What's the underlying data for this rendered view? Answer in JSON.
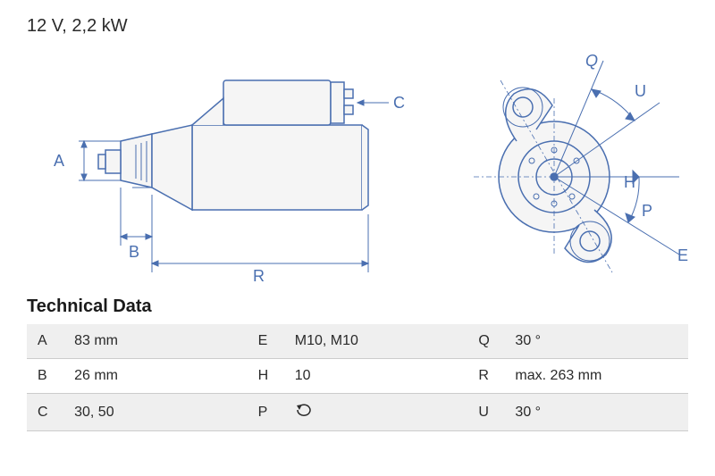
{
  "header": {
    "text": "12 V, 2,2 kW"
  },
  "diagram": {
    "labels": {
      "A": "A",
      "B": "B",
      "R": "R",
      "C": "C",
      "Q": "Q",
      "U": "U",
      "H": "H",
      "P": "P",
      "E": "E"
    },
    "colors": {
      "stroke": "#4a6fb0",
      "fill_light": "#f5f5f5",
      "background": "#ffffff"
    },
    "stroke_width": 1.5
  },
  "table": {
    "title": "Technical Data",
    "rows": [
      {
        "shaded": true,
        "c1_label": "A",
        "c1_val": "83 mm",
        "c2_label": "E",
        "c2_val": "M10, M10",
        "c3_label": "Q",
        "c3_val": "30 °"
      },
      {
        "shaded": false,
        "c1_label": "B",
        "c1_val": "26 mm",
        "c2_label": "H",
        "c2_val": "10",
        "c3_label": "R",
        "c3_val": "max. 263 mm"
      },
      {
        "shaded": true,
        "c1_label": "C",
        "c1_val": "30, 50",
        "c2_label": "P",
        "c2_val": "__ICON__",
        "c3_label": "U",
        "c3_val": "30 °"
      }
    ]
  }
}
